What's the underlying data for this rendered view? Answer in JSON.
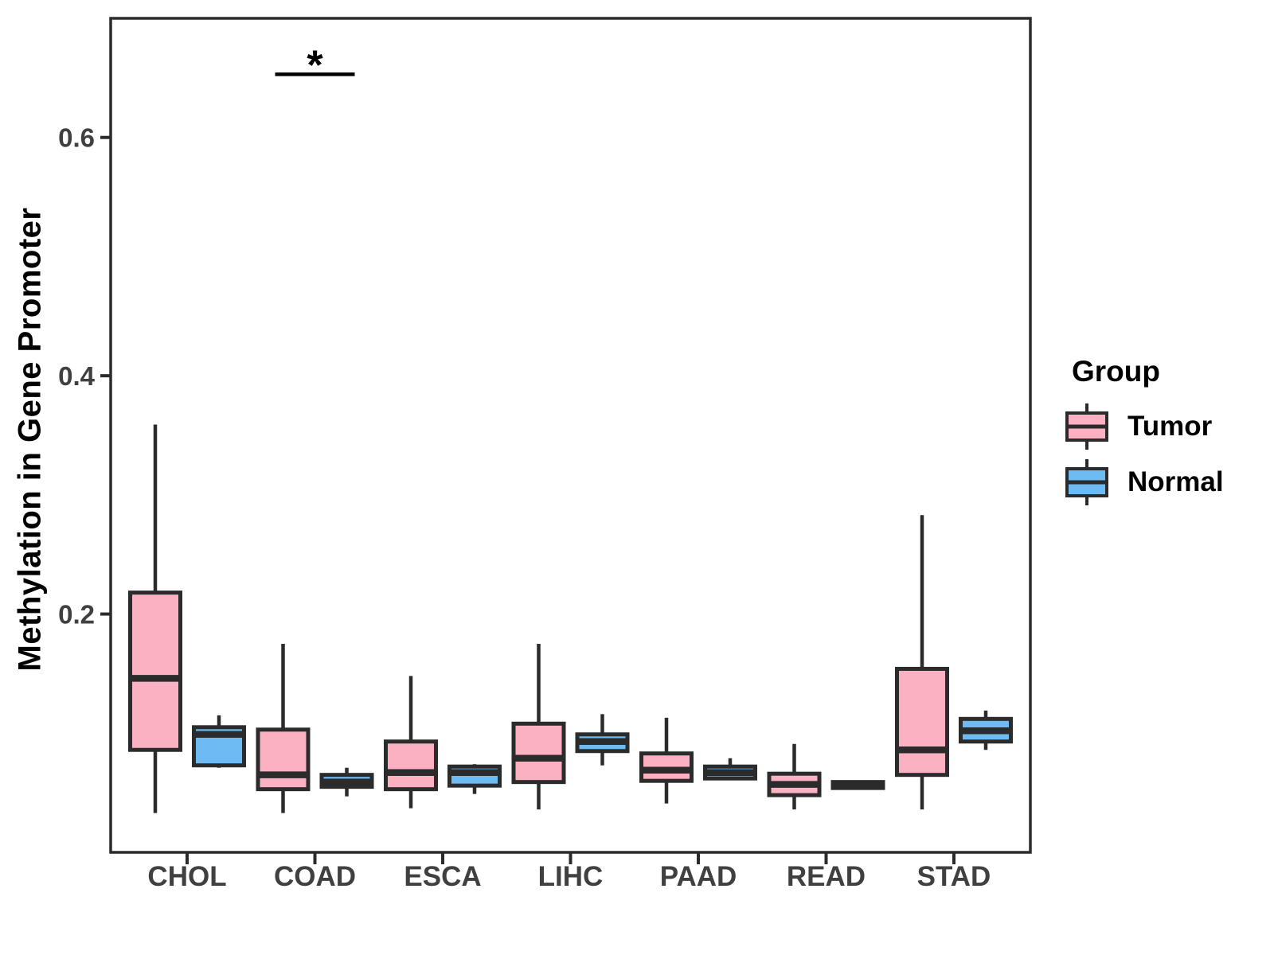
{
  "figure": {
    "background": "#ffffff",
    "y_axis_title": "Methylation in Gene Promoter"
  },
  "legend": {
    "title": "Group",
    "entries": [
      {
        "label": "Tumor",
        "color": "#FBB1C2"
      },
      {
        "label": "Normal",
        "color": "#6EBBF3"
      }
    ]
  },
  "colors": {
    "tumor_fill": "#FBB1C2",
    "normal_fill": "#6EBBF3",
    "box_stroke": "#2B2B2B",
    "panel_border": "#2B2B2B",
    "tick_label": "#404040",
    "axis_title": "#000000"
  },
  "chart_data": {
    "type": "boxplot",
    "title": "",
    "xlabel": "",
    "ylabel": "Methylation in Gene Promoter",
    "legend_position": "right",
    "grid": false,
    "categories": [
      "CHOL",
      "COAD",
      "ESCA",
      "LIHC",
      "PAAD",
      "READ",
      "STAD"
    ],
    "ylim": [
      0,
      0.7
    ],
    "y_ticks": [
      {
        "value": 0.2,
        "label": "0.2"
      },
      {
        "value": 0.4,
        "label": "0.4"
      },
      {
        "value": 0.6,
        "label": "0.6"
      }
    ],
    "series": [
      {
        "name": "Tumor",
        "color": "#FBB1C2",
        "boxes": [
          {
            "category": "CHOL",
            "min": 0.033,
            "q1": 0.086,
            "median": 0.146,
            "q3": 0.218,
            "max": 0.359
          },
          {
            "category": "COAD",
            "min": 0.033,
            "q1": 0.053,
            "median": 0.065,
            "q3": 0.103,
            "max": 0.175
          },
          {
            "category": "ESCA",
            "min": 0.037,
            "q1": 0.053,
            "median": 0.067,
            "q3": 0.093,
            "max": 0.148
          },
          {
            "category": "LIHC",
            "min": 0.036,
            "q1": 0.059,
            "median": 0.079,
            "q3": 0.108,
            "max": 0.175
          },
          {
            "category": "PAAD",
            "min": 0.041,
            "q1": 0.06,
            "median": 0.069,
            "q3": 0.083,
            "max": 0.113
          },
          {
            "category": "READ",
            "min": 0.036,
            "q1": 0.048,
            "median": 0.057,
            "q3": 0.066,
            "max": 0.091
          },
          {
            "category": "STAD",
            "min": 0.036,
            "q1": 0.065,
            "median": 0.086,
            "q3": 0.154,
            "max": 0.283
          }
        ]
      },
      {
        "name": "Normal",
        "color": "#6EBBF3",
        "boxes": [
          {
            "category": "CHOL",
            "min": 0.071,
            "q1": 0.073,
            "median": 0.099,
            "q3": 0.105,
            "max": 0.115
          },
          {
            "category": "COAD",
            "min": 0.047,
            "q1": 0.055,
            "median": 0.059,
            "q3": 0.065,
            "max": 0.071
          },
          {
            "category": "ESCA",
            "min": 0.049,
            "q1": 0.056,
            "median": 0.067,
            "q3": 0.072,
            "max": 0.074
          },
          {
            "category": "LIHC",
            "min": 0.073,
            "q1": 0.085,
            "median": 0.093,
            "q3": 0.099,
            "max": 0.116
          },
          {
            "category": "PAAD",
            "min": 0.061,
            "q1": 0.062,
            "median": 0.067,
            "q3": 0.072,
            "max": 0.079
          },
          {
            "category": "READ",
            "min": 0.054,
            "q1": 0.054,
            "median": 0.057,
            "q3": 0.059,
            "max": 0.059
          },
          {
            "category": "STAD",
            "min": 0.086,
            "q1": 0.093,
            "median": 0.102,
            "q3": 0.112,
            "max": 0.119
          }
        ]
      }
    ],
    "annotations": [
      {
        "type": "significance-bracket",
        "category": "COAD",
        "label": "*",
        "y": 0.653
      }
    ]
  }
}
